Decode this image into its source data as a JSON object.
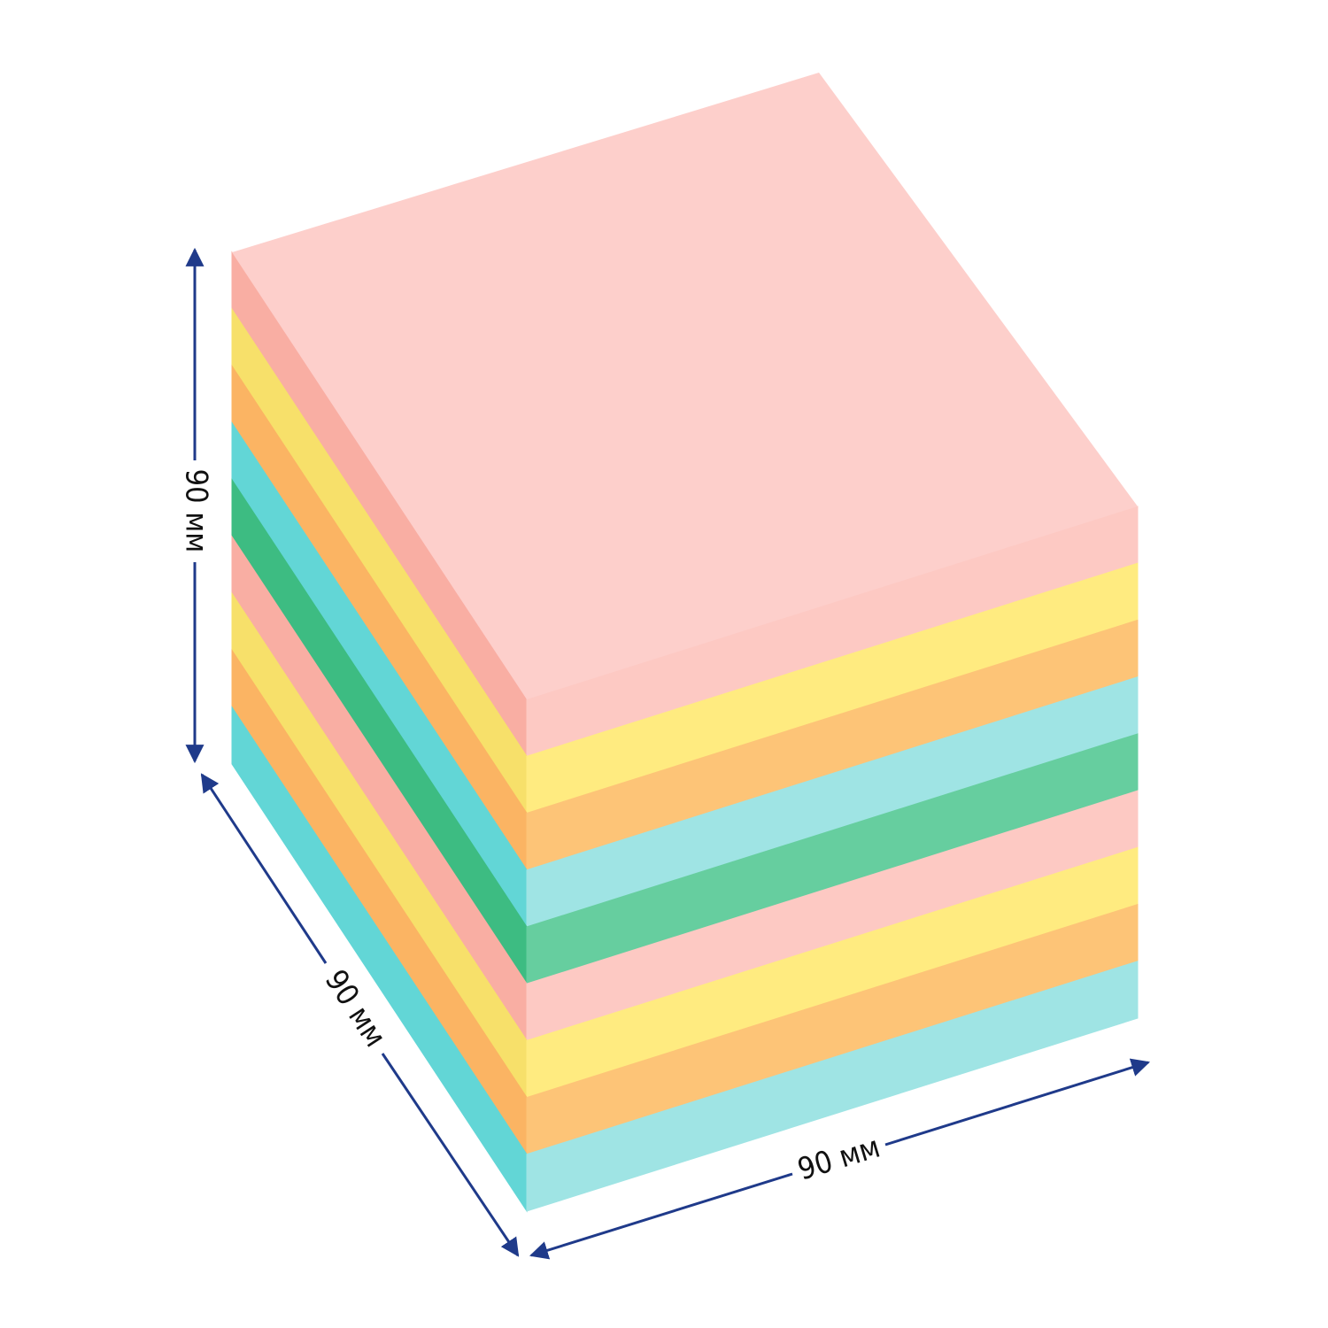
{
  "dimensions": {
    "height": {
      "label": "90 мм"
    },
    "depth": {
      "label": "90 мм"
    },
    "width": {
      "label": "90 мм"
    }
  }
}
